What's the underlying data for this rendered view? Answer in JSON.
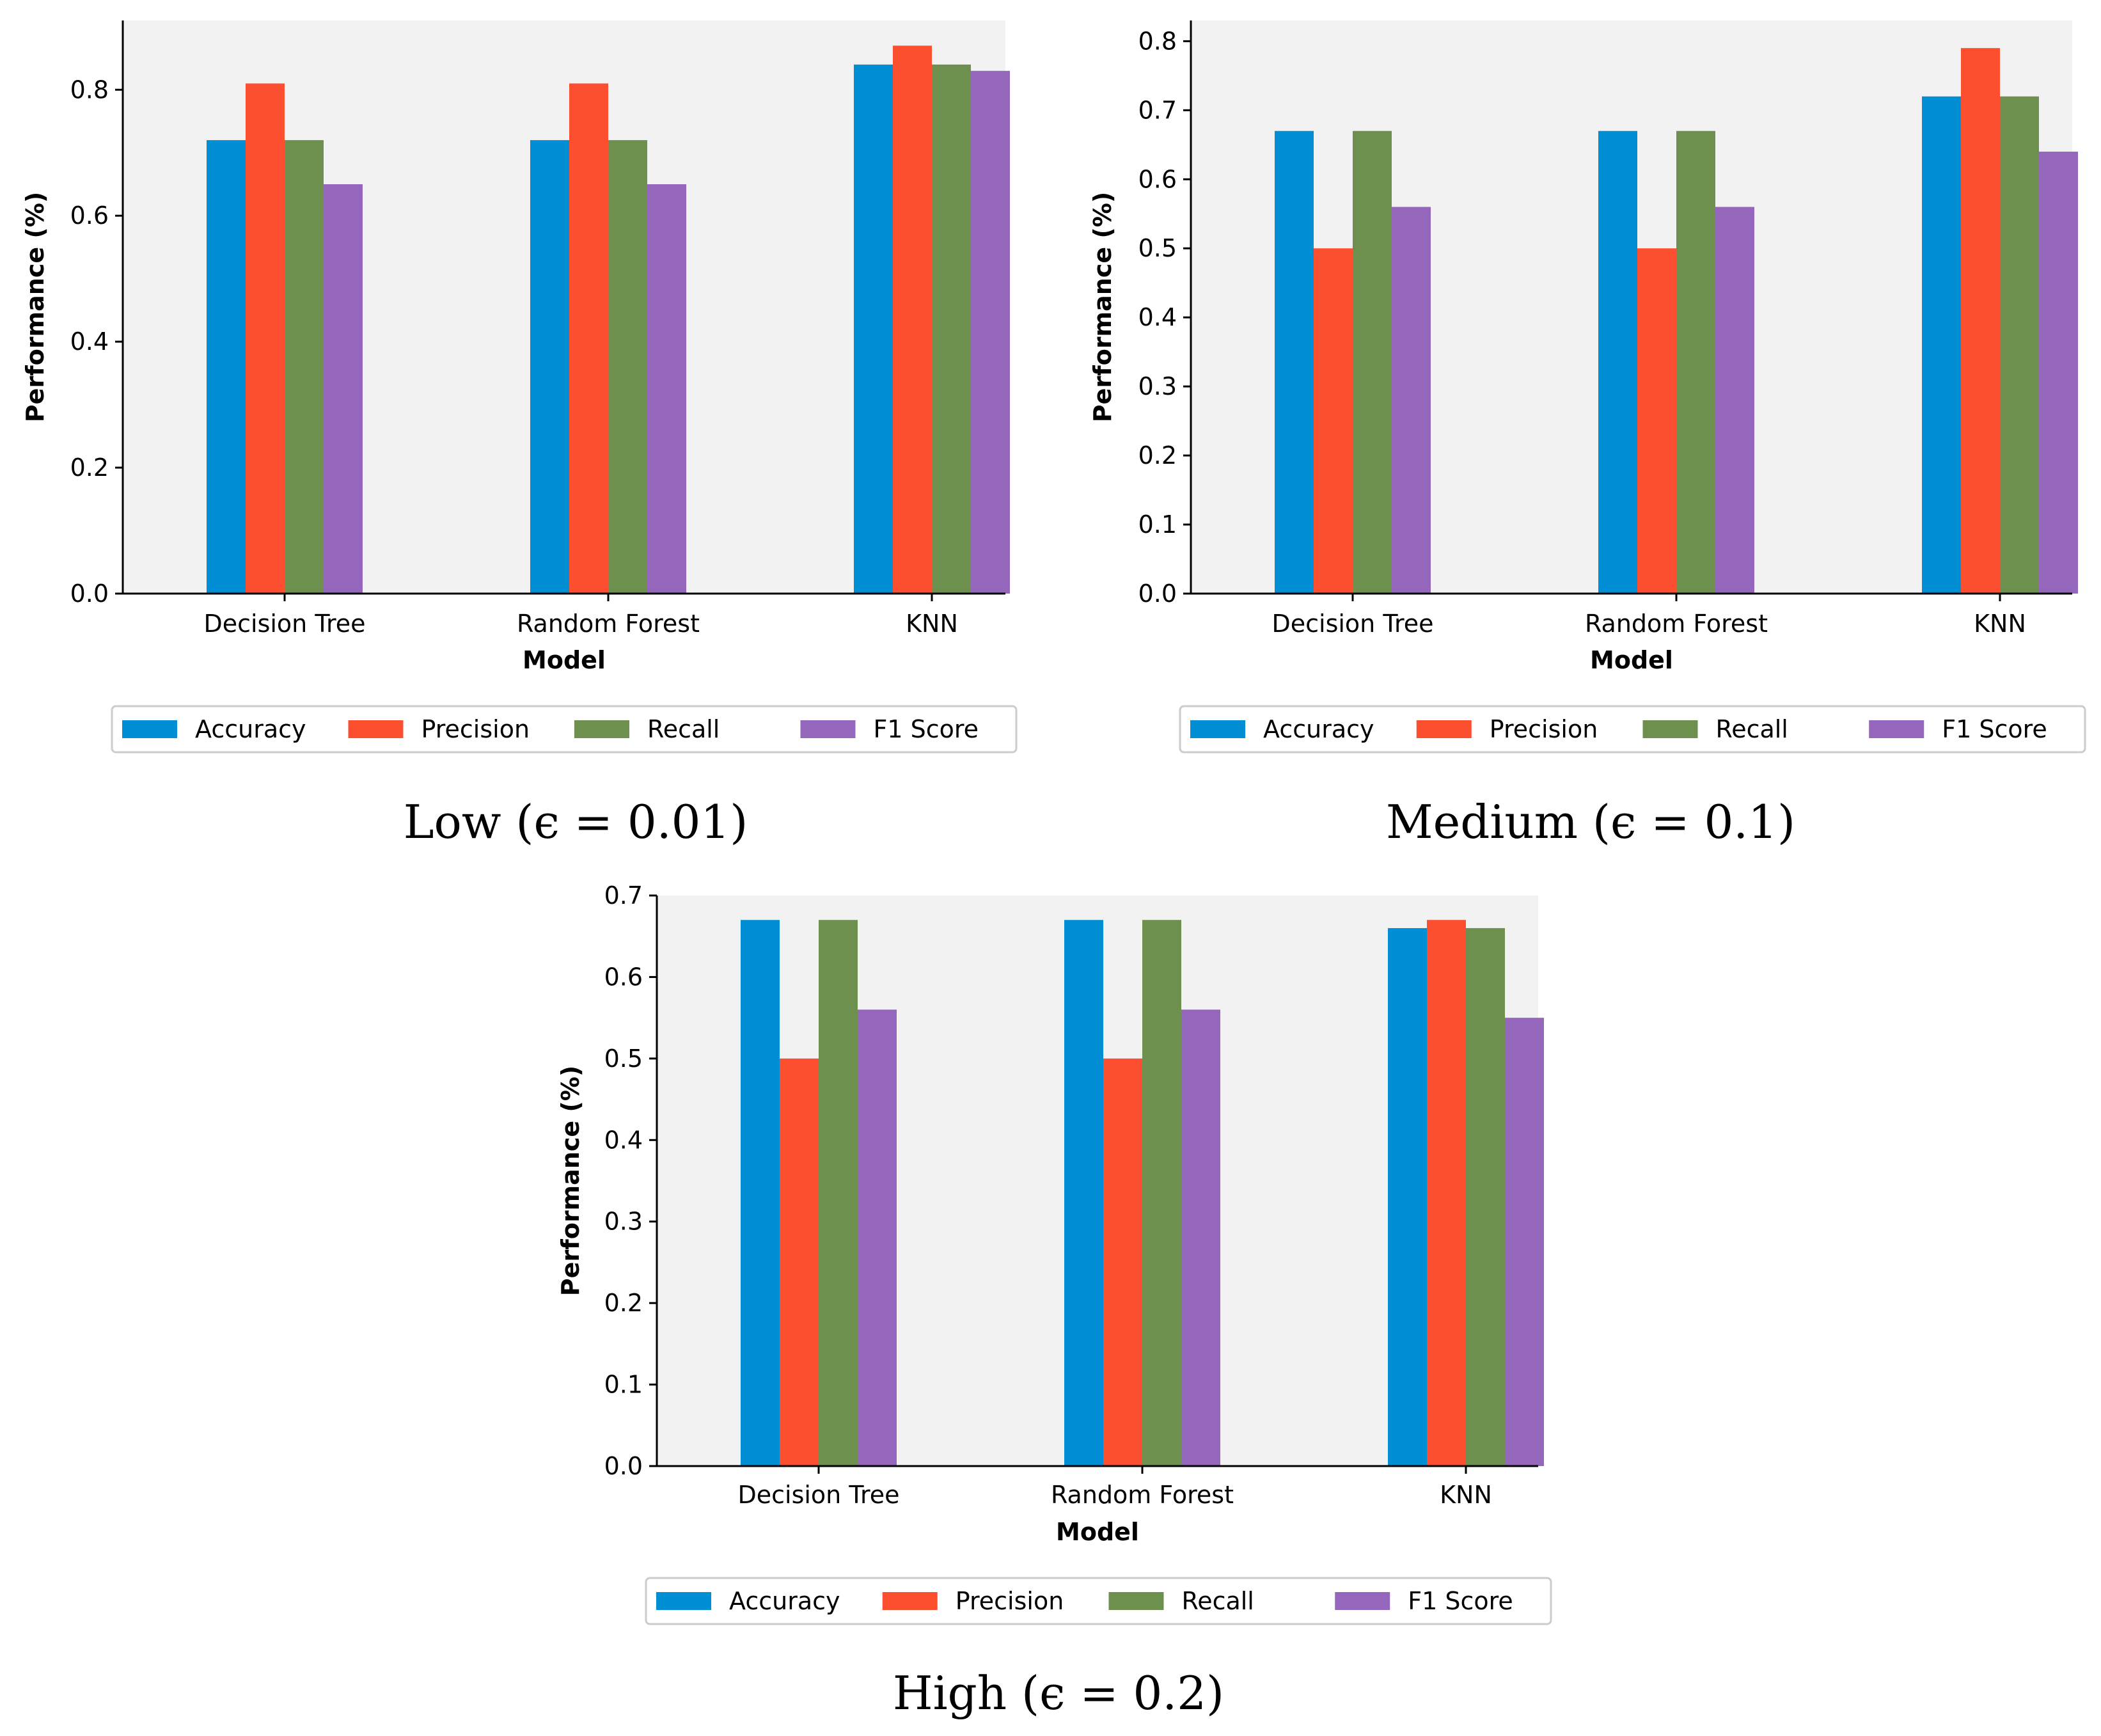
{
  "chart_data": [
    {
      "type": "bar",
      "caption": "Low (ϵ = 0.01)",
      "categories": [
        "Decision Tree",
        "Random Forest",
        "KNN"
      ],
      "series": [
        {
          "name": "Accuracy",
          "values": [
            0.72,
            0.72,
            0.84
          ]
        },
        {
          "name": "Precision",
          "values": [
            0.81,
            0.81,
            0.87
          ]
        },
        {
          "name": "Recall",
          "values": [
            0.72,
            0.72,
            0.84
          ]
        },
        {
          "name": "F1 Score",
          "values": [
            0.65,
            0.65,
            0.83
          ]
        }
      ],
      "xlabel": "Model",
      "ylabel": "Performance (%)",
      "ylim": [
        0,
        0.91
      ],
      "yticks": [
        "0.0",
        "0.2",
        "0.4",
        "0.6",
        "0.8"
      ],
      "legend": "bottom"
    },
    {
      "type": "bar",
      "caption": "Medium (ϵ = 0.1)",
      "categories": [
        "Decision Tree",
        "Random Forest",
        "KNN"
      ],
      "series": [
        {
          "name": "Accuracy",
          "values": [
            0.67,
            0.67,
            0.72
          ]
        },
        {
          "name": "Precision",
          "values": [
            0.5,
            0.5,
            0.79
          ]
        },
        {
          "name": "Recall",
          "values": [
            0.67,
            0.67,
            0.72
          ]
        },
        {
          "name": "F1 Score",
          "values": [
            0.56,
            0.56,
            0.64
          ]
        }
      ],
      "xlabel": "Model",
      "ylabel": "Performance (%)",
      "ylim": [
        0,
        0.83
      ],
      "yticks": [
        "0.0",
        "0.1",
        "0.2",
        "0.3",
        "0.4",
        "0.5",
        "0.6",
        "0.7",
        "0.8"
      ],
      "legend": "bottom"
    },
    {
      "type": "bar",
      "caption": "High (ϵ = 0.2)",
      "categories": [
        "Decision Tree",
        "Random Forest",
        "KNN"
      ],
      "series": [
        {
          "name": "Accuracy",
          "values": [
            0.67,
            0.67,
            0.66
          ]
        },
        {
          "name": "Precision",
          "values": [
            0.5,
            0.5,
            0.67
          ]
        },
        {
          "name": "Recall",
          "values": [
            0.67,
            0.67,
            0.66
          ]
        },
        {
          "name": "F1 Score",
          "values": [
            0.56,
            0.56,
            0.55
          ]
        }
      ],
      "xlabel": "Model",
      "ylabel": "Performance (%)",
      "ylim": [
        0,
        0.7
      ],
      "yticks": [
        "0.0",
        "0.1",
        "0.2",
        "0.3",
        "0.4",
        "0.5",
        "0.6",
        "0.7"
      ],
      "legend": "bottom"
    }
  ],
  "colors": {
    "Accuracy": "#008fd5",
    "Precision": "#fc4f30",
    "Recall": "#6d904f",
    "F1 Score": "#9467bd",
    "plot_background": "#f2f2f2"
  }
}
